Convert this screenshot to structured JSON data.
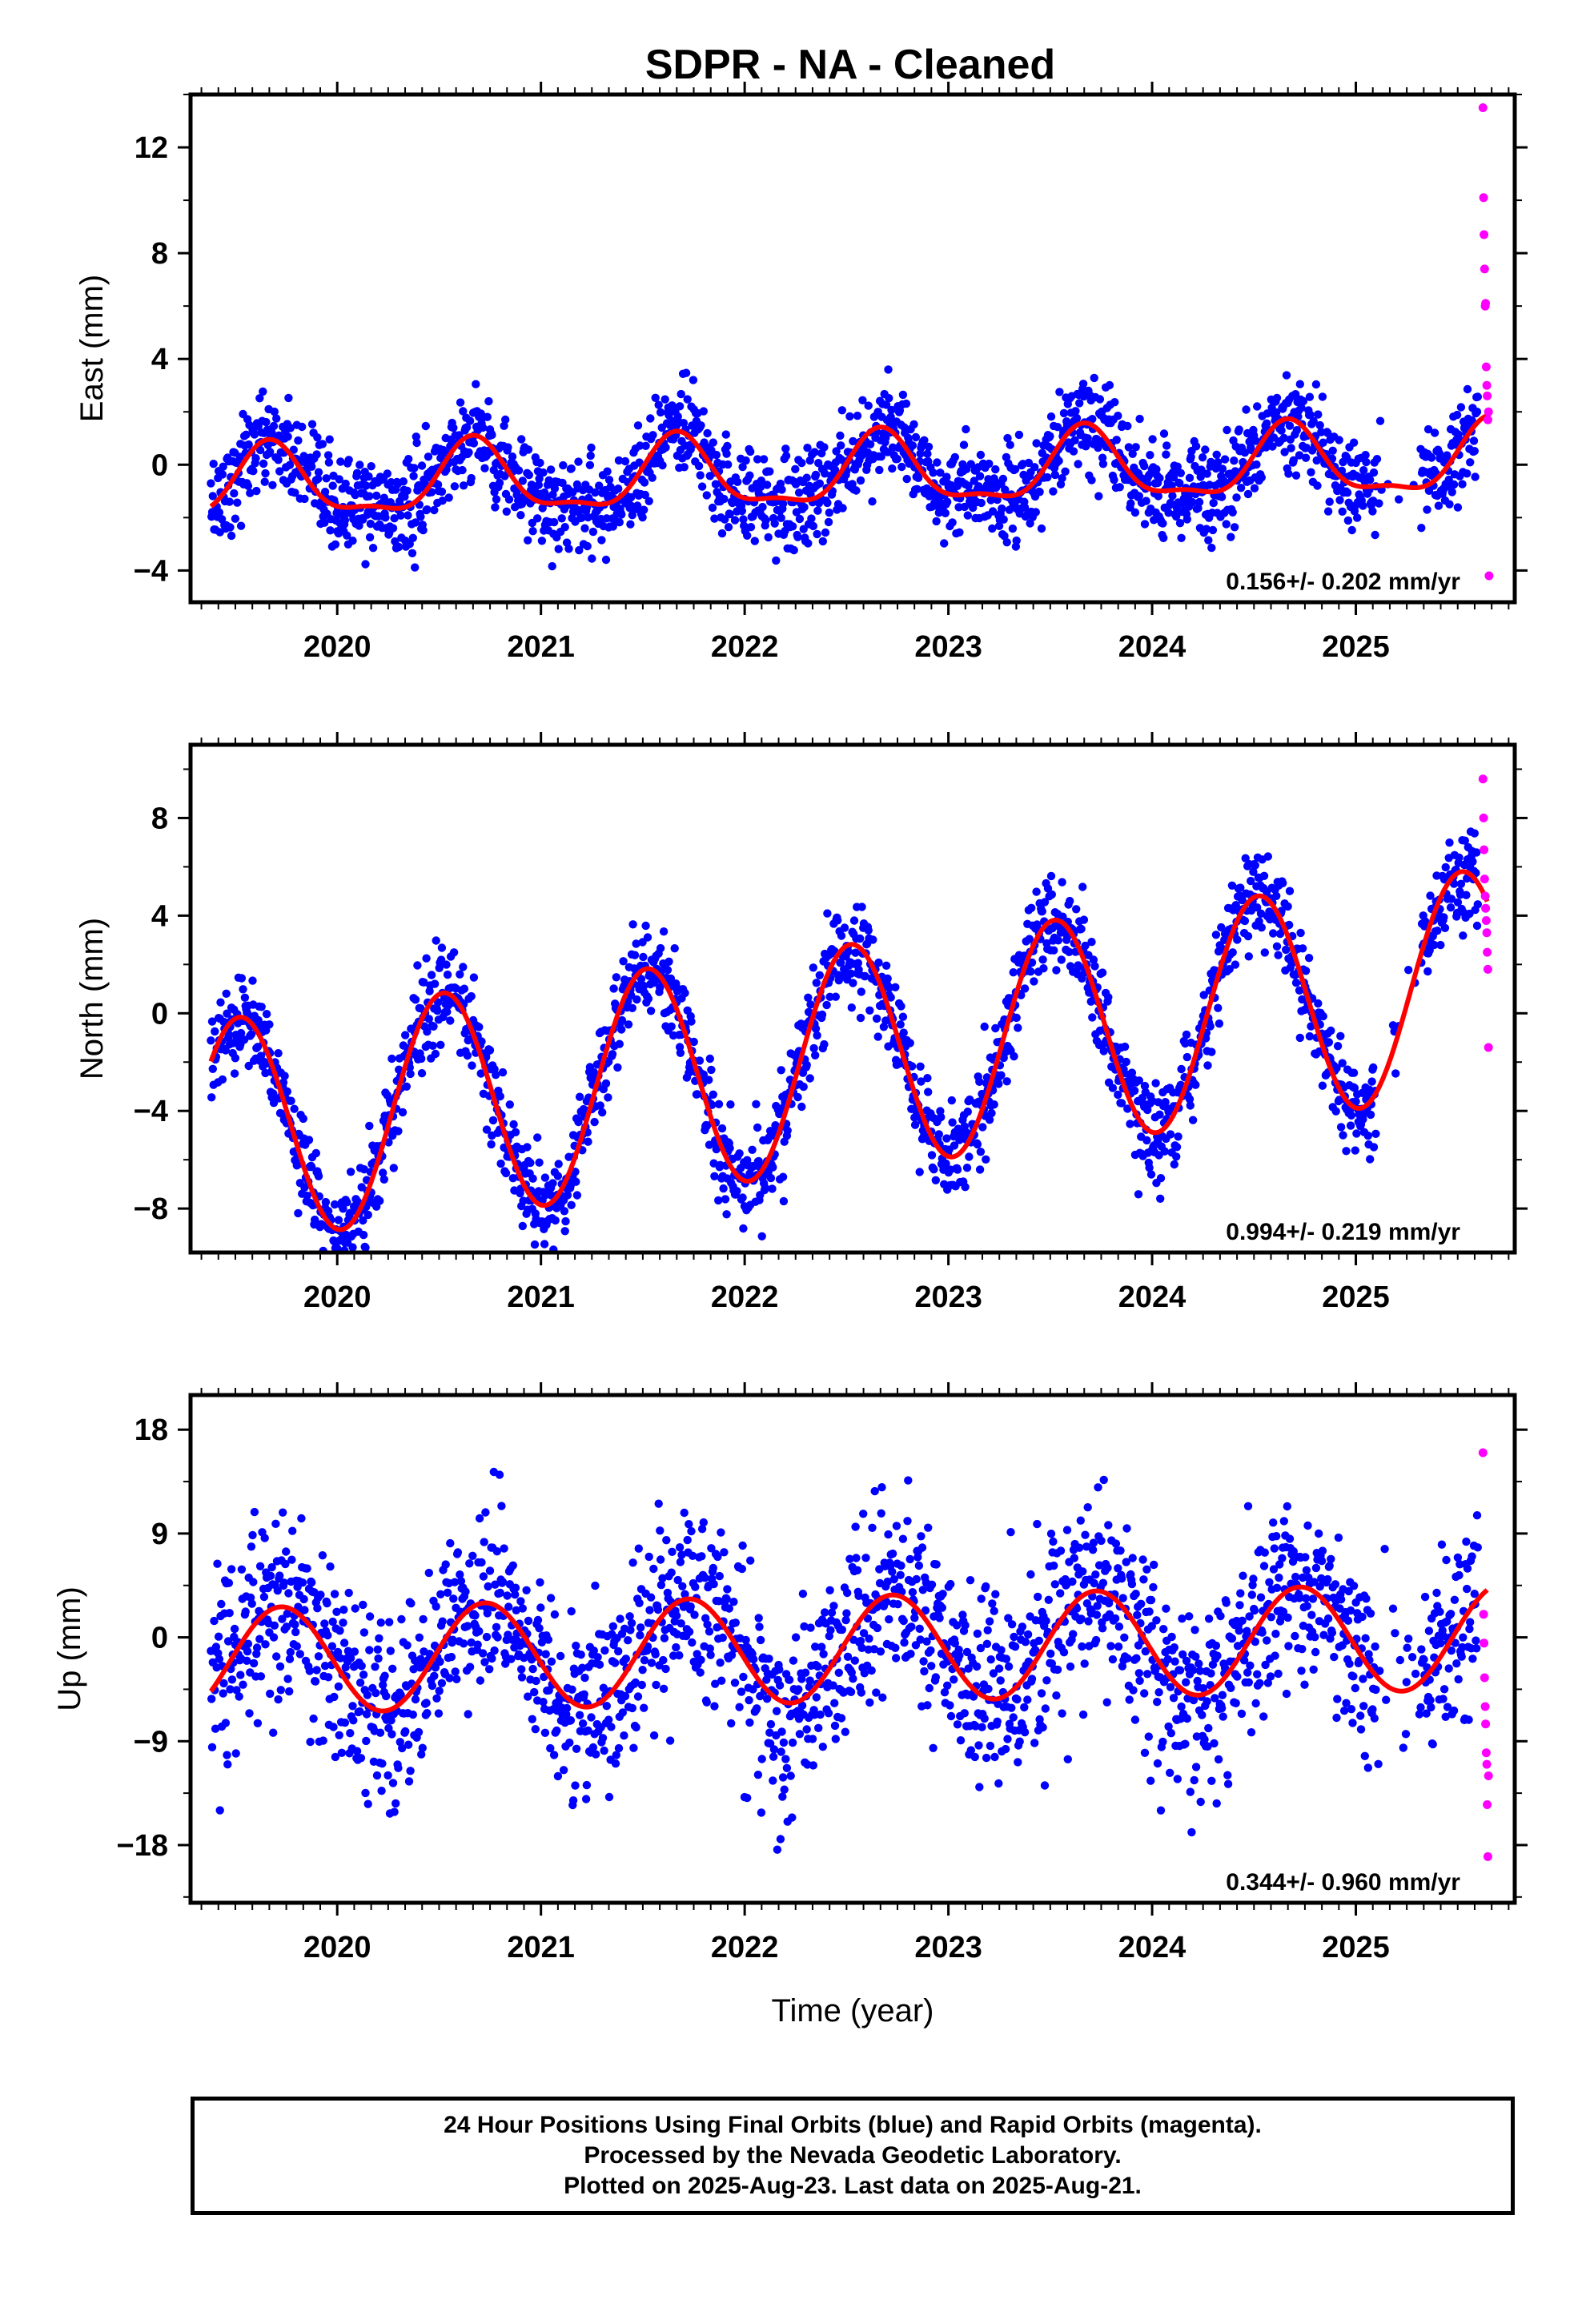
{
  "title": "SDPR  - NA - Cleaned",
  "colors": {
    "final_orbits": "#0000ff",
    "rapid_orbits": "#ff00ff",
    "model_fit": "#ff0000",
    "frame": "#000000"
  },
  "chart_data": [
    {
      "type": "scatter",
      "panel": "east",
      "title": "SDPR  - NA - Cleaned",
      "xlabel": "",
      "ylabel": "East (mm)",
      "xlim": [
        2019.28,
        2025.78
      ],
      "ylim": [
        -5.2,
        14.0
      ],
      "x_ticks": [
        2020,
        2021,
        2022,
        2023,
        2024,
        2025
      ],
      "x_tick_labels": [
        "2020",
        "2021",
        "2022",
        "2023",
        "2024",
        "2025"
      ],
      "y_ticks": [
        -4,
        0,
        4,
        8,
        12
      ],
      "y_tick_labels": [
        "−4",
        "0",
        "4",
        "8",
        "12"
      ],
      "rate_text": "0.156+/- 0.202 mm/yr",
      "model": {
        "offset": -0.35,
        "rate": 0.156,
        "annual_amp": 1.3,
        "annual_phase_day": 245,
        "semiannual_amp": 0.45,
        "semiannual_phase_day": 60
      },
      "noise_sd": 0.9,
      "final_orbits_span": [
        2019.38,
        2025.6
      ],
      "rapid_orbits_series": {
        "x": [
          2025.624,
          2025.627,
          2025.629,
          2025.632,
          2025.635,
          2025.637,
          2025.64,
          2025.643,
          2025.645,
          2025.648,
          2025.651,
          2025.654
        ],
        "y": [
          13.5,
          10.1,
          8.7,
          7.4,
          6.0,
          6.1,
          3.7,
          3.0,
          2.6,
          1.7,
          2.0,
          -4.2
        ]
      },
      "grid": false,
      "legend": "none"
    },
    {
      "type": "scatter",
      "panel": "north",
      "title": "",
      "xlabel": "",
      "ylabel": "North (mm)",
      "xlim": [
        2019.28,
        2025.78
      ],
      "ylim": [
        -9.8,
        11.0
      ],
      "x_ticks": [
        2020,
        2021,
        2022,
        2023,
        2024,
        2025
      ],
      "x_tick_labels": [
        "2020",
        "2021",
        "2022",
        "2023",
        "2024",
        "2025"
      ],
      "y_ticks": [
        -8,
        -4,
        0,
        4,
        8
      ],
      "y_tick_labels": [
        "−8",
        "−4",
        "0",
        "4",
        "8"
      ],
      "rate_text": "0.994+/- 0.219 mm/yr",
      "model": {
        "offset": -1.8,
        "rate": 0.994,
        "annual_amp": 4.6,
        "annual_phase_day": 190,
        "semiannual_amp": 0.0,
        "semiannual_phase_day": 0
      },
      "noise_sd": 0.95,
      "final_orbits_span": [
        2019.38,
        2025.6
      ],
      "rapid_orbits_series": {
        "x": [
          2025.624,
          2025.627,
          2025.629,
          2025.632,
          2025.635,
          2025.637,
          2025.64,
          2025.643,
          2025.645,
          2025.648,
          2025.651
        ],
        "y": [
          9.6,
          8.0,
          6.7,
          5.5,
          4.8,
          4.3,
          3.8,
          3.3,
          2.5,
          1.8,
          -1.4
        ]
      },
      "grid": false,
      "legend": "none"
    },
    {
      "type": "scatter",
      "panel": "up",
      "title": "",
      "xlabel": "Time (year)",
      "ylabel": "Up (mm)",
      "xlim": [
        2019.28,
        2025.78
      ],
      "ylim": [
        -23.0,
        21.0
      ],
      "x_ticks": [
        2020,
        2021,
        2022,
        2023,
        2024,
        2025
      ],
      "x_tick_labels": [
        "2020",
        "2021",
        "2022",
        "2023",
        "2024",
        "2025"
      ],
      "y_ticks": [
        -18,
        -9,
        0,
        9,
        18
      ],
      "y_tick_labels": [
        "−18",
        "−9",
        "0",
        "9",
        "18"
      ],
      "rate_text": "0.344+/- 0.960 mm/yr",
      "model": {
        "offset": -1.0,
        "rate": 0.344,
        "annual_amp": 4.6,
        "annual_phase_day": 265,
        "semiannual_amp": 0.0,
        "semiannual_phase_day": 0
      },
      "noise_sd": 4.2,
      "final_orbits_span": [
        2019.38,
        2025.6
      ],
      "rapid_orbits_series": {
        "x": [
          2025.624,
          2025.627,
          2025.629,
          2025.632,
          2025.635,
          2025.637,
          2025.64,
          2025.643,
          2025.645,
          2025.648,
          2025.651
        ],
        "y": [
          16.0,
          2.0,
          -0.5,
          -3.5,
          -6.0,
          -7.5,
          -10.0,
          -11.0,
          -14.5,
          -19.0,
          -12.0
        ]
      },
      "grid": false,
      "legend": "none"
    }
  ],
  "footer": {
    "line1": "24 Hour Positions Using Final Orbits (blue) and Rapid Orbits (magenta).",
    "line2": "Processed by the Nevada Geodetic Laboratory.",
    "line3": "Plotted on 2025-Aug-23. Last data on 2025-Aug-21."
  }
}
